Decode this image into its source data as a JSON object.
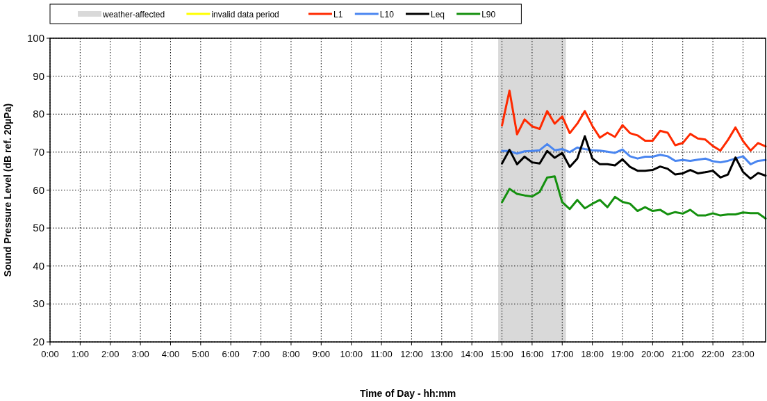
{
  "chart_data": {
    "type": "line",
    "xlabel": "Time of Day - hh:mm",
    "ylabel": "Sound Pressure Level  (dB ref. 20µPa)",
    "x": [
      15,
      15.25,
      15.5,
      15.75,
      16,
      16.25,
      16.5,
      16.75,
      17,
      17.25,
      17.5,
      17.75,
      18,
      18.25,
      18.5,
      18.75,
      19,
      19.25,
      19.5,
      19.75,
      20,
      20.25,
      20.5,
      20.75,
      21,
      21.25,
      21.5,
      21.75,
      22,
      22.25,
      22.5,
      22.75,
      23,
      23.25,
      23.5,
      23.75
    ],
    "series": [
      {
        "name": "invalid data period",
        "color": "#ffff00",
        "values": [
          null,
          null,
          null,
          null,
          null,
          null,
          null,
          null,
          null,
          null,
          null,
          null,
          null,
          null,
          null,
          null,
          null,
          null,
          null,
          null,
          null,
          null,
          null,
          null,
          null,
          null,
          null,
          null,
          null,
          null,
          null,
          null,
          null,
          null,
          null,
          null
        ]
      },
      {
        "name": "L1",
        "color": "#ff2a00",
        "values": [
          77.0,
          86.2,
          74.7,
          78.6,
          76.8,
          76.1,
          80.8,
          77.5,
          79.4,
          75.0,
          77.5,
          80.8,
          76.9,
          73.8,
          75.1,
          74.0,
          77.1,
          75.0,
          74.4,
          73.0,
          73.0,
          75.6,
          75.1,
          71.8,
          72.4,
          74.8,
          73.6,
          73.3,
          71.6,
          70.4,
          73.2,
          76.5,
          72.9,
          70.4,
          72.4,
          71.5
        ]
      },
      {
        "name": "L10",
        "color": "#4a86f0",
        "values": [
          70.3,
          70.3,
          69.6,
          70.2,
          70.3,
          70.5,
          72.1,
          70.5,
          70.8,
          70.0,
          71.2,
          70.8,
          70.5,
          70.4,
          70.1,
          69.8,
          70.7,
          68.9,
          68.3,
          68.8,
          68.8,
          69.3,
          68.9,
          67.7,
          67.9,
          67.7,
          68.0,
          68.3,
          67.6,
          67.3,
          67.7,
          68.3,
          68.9,
          66.8,
          67.7,
          67.9
        ]
      },
      {
        "name": "Leq",
        "color": "#000000",
        "values": [
          67.0,
          70.6,
          66.8,
          68.8,
          67.3,
          67.0,
          70.3,
          68.5,
          69.8,
          66.1,
          68.3,
          74.2,
          68.3,
          66.8,
          66.8,
          66.5,
          68.1,
          66.1,
          65.1,
          65.1,
          65.3,
          66.2,
          65.6,
          64.1,
          64.4,
          65.3,
          64.4,
          64.7,
          65.1,
          63.3,
          64.1,
          68.6,
          64.8,
          63.0,
          64.5,
          63.8
        ]
      },
      {
        "name": "L90",
        "color": "#14900e",
        "values": [
          56.8,
          60.3,
          59.0,
          58.6,
          58.3,
          59.5,
          63.3,
          63.6,
          56.8,
          55.0,
          57.4,
          55.2,
          56.4,
          57.4,
          55.5,
          58.2,
          56.9,
          56.4,
          54.5,
          55.5,
          54.5,
          54.8,
          53.6,
          54.2,
          53.8,
          54.8,
          53.3,
          53.3,
          53.9,
          53.3,
          53.6,
          53.6,
          54.1,
          53.9,
          53.9,
          52.5
        ]
      }
    ],
    "bands": [
      {
        "axis": "x",
        "from": 14.875,
        "to": 17.125,
        "label": "weather-affected",
        "color": "#d9d9d9"
      }
    ],
    "xlim": [
      0,
      23.75
    ],
    "xticks": [
      {
        "value": 0,
        "label": "0:00"
      },
      {
        "value": 1,
        "label": "1:00"
      },
      {
        "value": 2,
        "label": "2:00"
      },
      {
        "value": 3,
        "label": "3:00"
      },
      {
        "value": 4,
        "label": "4:00"
      },
      {
        "value": 5,
        "label": "5:00"
      },
      {
        "value": 6,
        "label": "6:00"
      },
      {
        "value": 7,
        "label": "7:00"
      },
      {
        "value": 8,
        "label": "8:00"
      },
      {
        "value": 9,
        "label": "9:00"
      },
      {
        "value": 10,
        "label": "10:00"
      },
      {
        "value": 11,
        "label": "11:00"
      },
      {
        "value": 12,
        "label": "12:00"
      },
      {
        "value": 13,
        "label": "13:00"
      },
      {
        "value": 14,
        "label": "14:00"
      },
      {
        "value": 15,
        "label": "15:00"
      },
      {
        "value": 16,
        "label": "16:00"
      },
      {
        "value": 17,
        "label": "17:00"
      },
      {
        "value": 18,
        "label": "18:00"
      },
      {
        "value": 19,
        "label": "19:00"
      },
      {
        "value": 20,
        "label": "20:00"
      },
      {
        "value": 21,
        "label": "21:00"
      },
      {
        "value": 22,
        "label": "22:00"
      },
      {
        "value": 23,
        "label": "23:00"
      }
    ],
    "ylim": [
      20,
      100
    ],
    "yticks": [
      20,
      30,
      40,
      50,
      60,
      70,
      80,
      90,
      100
    ],
    "grid": true,
    "legend": "top",
    "marker": "none",
    "line_style": "solid"
  }
}
